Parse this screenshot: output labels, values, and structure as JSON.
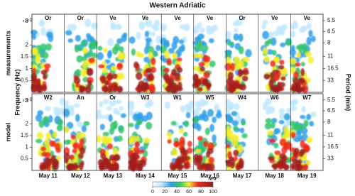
{
  "chart_data": {
    "type": "spectrogram",
    "title": "Western Adriatic",
    "y_label": "Frequency (Hz)",
    "y_multiplier": {
      "base": "x10",
      "exponent": "-3"
    },
    "y2_label": "Period (min)",
    "ylim": [
      0,
      3.3
    ],
    "yticks": [
      0.5,
      1,
      1.5,
      2,
      3
    ],
    "y2ticks": [
      5.5,
      6.5,
      8,
      11,
      16.5,
      33
    ],
    "categories": [
      "May 11",
      "May 12",
      "May 13",
      "May 14",
      "May 15",
      "May 16",
      "May 17",
      "May 18",
      "May 19"
    ],
    "panels": [
      {
        "row_label": "measurements",
        "column_labels": [
          "Or",
          "Or",
          "Ve",
          "Ve",
          "Ve",
          "Ve",
          "Or",
          "Ve",
          "Ve"
        ]
      },
      {
        "row_label": "model",
        "column_labels": [
          "W2",
          "An",
          "Or",
          "W3",
          "W1",
          "W5",
          "W4",
          "W6",
          "W7"
        ]
      }
    ],
    "colorbar": {
      "label": "hPa²",
      "ticks": [
        0,
        20,
        40,
        60,
        80,
        100
      ]
    }
  }
}
